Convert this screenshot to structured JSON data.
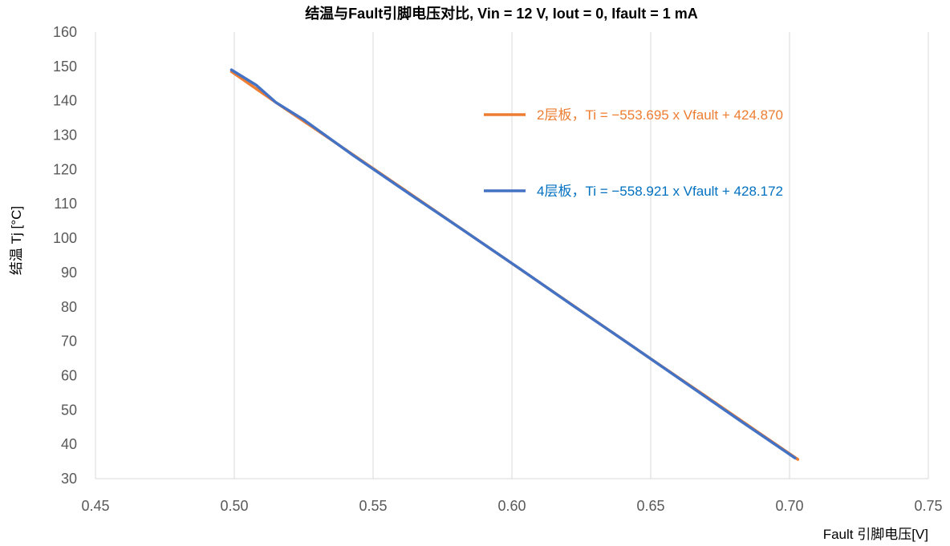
{
  "chart_data": {
    "type": "line",
    "title": "结温与Fault引脚电压对比, Vin = 12 V, Iout = 0, Ifault = 1 mA",
    "xlabel": "Fault 引脚电压[V]",
    "ylabel": "结温 Tj [°C]",
    "xlim": [
      0.45,
      0.75
    ],
    "ylim": [
      30,
      160
    ],
    "x_ticks": [
      "0.45",
      "0.50",
      "0.55",
      "0.60",
      "0.65",
      "0.70",
      "0.75"
    ],
    "y_ticks": [
      "30",
      "40",
      "50",
      "60",
      "70",
      "80",
      "90",
      "100",
      "110",
      "120",
      "130",
      "140",
      "150",
      "160"
    ],
    "grid": "vertical",
    "legend_position": "right",
    "series": [
      {
        "name": "2层板，Ti = −553.695 x Vfault + 424.870",
        "color": "#ED7D31",
        "x": [
          0.499,
          0.515,
          0.533,
          0.552,
          0.571,
          0.59,
          0.61,
          0.63,
          0.65,
          0.67,
          0.69,
          0.703
        ],
        "y": [
          148.5,
          139.5,
          129.7,
          119.2,
          108.7,
          98.2,
          87.1,
          76.0,
          64.9,
          53.9,
          42.8,
          35.6
        ]
      },
      {
        "name": "4层板，Ti = −558.921 x Vfault + 428.172",
        "color": "#4472C4",
        "x": [
          0.499,
          0.508,
          0.515,
          0.525,
          0.543,
          0.562,
          0.582,
          0.603,
          0.623,
          0.643,
          0.663,
          0.682,
          0.702
        ],
        "y": [
          149.0,
          144.5,
          139.5,
          134.5,
          124.0,
          113.5,
          102.6,
          91.0,
          79.8,
          68.8,
          57.6,
          47.0,
          36.0
        ]
      }
    ]
  }
}
